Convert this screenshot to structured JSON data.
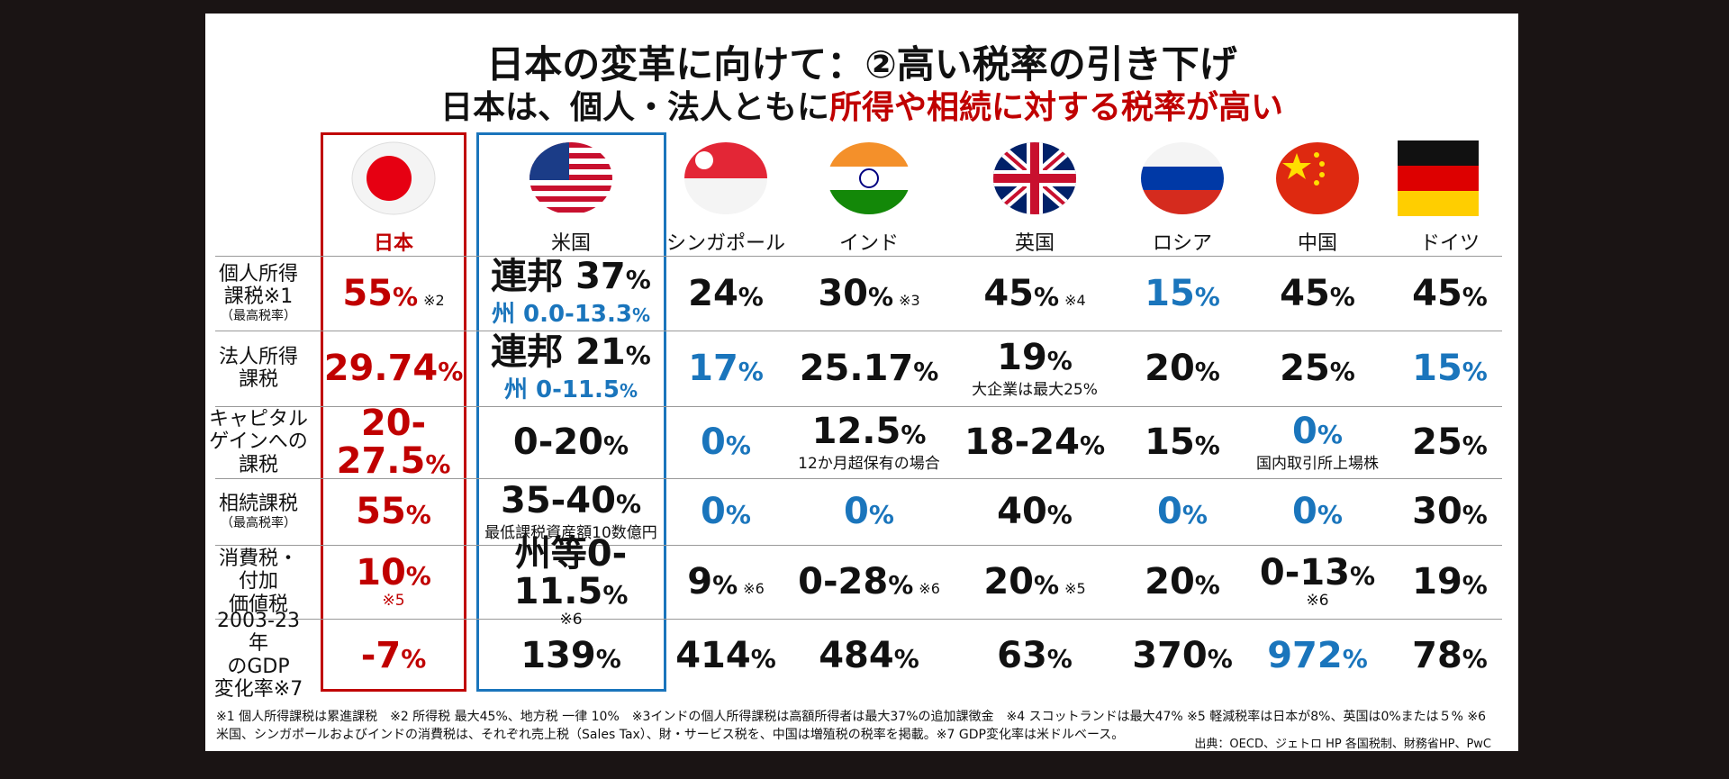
{
  "header": {
    "title": "日本の変革に向けて：②高い税率の引き下げ",
    "subtitle": "日本は、個人・法人ともに",
    "subtitle_highlight": "所得や相続に対する税率が高い"
  },
  "countries": [
    {
      "name": "日本",
      "text_color": "#c00000",
      "box_color": "#c00000"
    },
    {
      "name": "米国",
      "box_color": "#1a75bc"
    },
    {
      "name": "シンガポール"
    },
    {
      "name": "インド"
    },
    {
      "name": "英国"
    },
    {
      "name": "ロシア"
    },
    {
      "name": "中国"
    },
    {
      "name": "ドイツ"
    }
  ],
  "rows": [
    {
      "label": "個人所得\n課税※1",
      "sublabel": "（最高税率）",
      "cells": [
        {
          "text": "55%",
          "note": "※2"
        },
        {
          "text": "連邦 37%",
          "line2": "州 0.0-13.3%",
          "line2_color": "#1a75bc"
        },
        {
          "text": "24%"
        },
        {
          "text": "30%",
          "note": "※3"
        },
        {
          "text": "45%",
          "note": "※4"
        },
        {
          "text": "15%",
          "color": "#1a75bc"
        },
        {
          "text": "45%"
        },
        {
          "text": "45%"
        }
      ]
    },
    {
      "label": "法人所得\n課税",
      "cells": [
        {
          "text": "29.74%"
        },
        {
          "text": "連邦 21%",
          "line2": "州 0-11.5%",
          "line2_color": "#1a75bc"
        },
        {
          "text": "17%",
          "color": "#1a75bc"
        },
        {
          "text": "25.17%"
        },
        {
          "text": "19%",
          "sub": "大企業は最大25%"
        },
        {
          "text": "20%"
        },
        {
          "text": "25%"
        },
        {
          "text": "15%",
          "color": "#1a75bc"
        }
      ]
    },
    {
      "label": "キャピタル\nゲインへの\n課税",
      "cells": [
        {
          "text": "20-\n27.5%"
        },
        {
          "text": "0-20%"
        },
        {
          "text": "0%",
          "color": "#1a75bc"
        },
        {
          "text": "12.5%",
          "sub": "12か月超保有の場合"
        },
        {
          "text": "18-24%"
        },
        {
          "text": "15%"
        },
        {
          "text": "0%",
          "color": "#1a75bc",
          "sub": "国内取引所上場株"
        },
        {
          "text": "25%"
        }
      ]
    },
    {
      "label": "相続課税",
      "sublabel": "（最高税率）",
      "cells": [
        {
          "text": "55%"
        },
        {
          "text": "35-40%",
          "sub": "最低課税資産額10数億円"
        },
        {
          "text": "0%",
          "color": "#1a75bc"
        },
        {
          "text": "0%",
          "color": "#1a75bc"
        },
        {
          "text": "40%"
        },
        {
          "text": "0%",
          "color": "#1a75bc"
        },
        {
          "text": "0%",
          "color": "#1a75bc"
        },
        {
          "text": "30%"
        }
      ]
    },
    {
      "label": "消費税・\n付加\n価値税",
      "cells": [
        {
          "text": "10%",
          "sub": "※5"
        },
        {
          "text": "州等0-11.5%",
          "sub": "※6"
        },
        {
          "text": "9%",
          "note": "※6"
        },
        {
          "text": "0-28%",
          "note": "※6"
        },
        {
          "text": "20%",
          "note": "※5"
        },
        {
          "text": "20%"
        },
        {
          "text": "0-13%",
          "sub": "※6"
        },
        {
          "text": "19%"
        }
      ]
    },
    {
      "label": "2003-23年\nのGDP\n変化率※7",
      "cells": [
        {
          "text": "-7%"
        },
        {
          "text": "139%"
        },
        {
          "text": "414%"
        },
        {
          "text": "484%"
        },
        {
          "text": "63%"
        },
        {
          "text": "370%"
        },
        {
          "text": "972%",
          "color": "#1a75bc"
        },
        {
          "text": "78%"
        }
      ]
    }
  ],
  "footnotes": "※1 個人所得課税は累進課税　※2 所得税 最大45%、地方税 一律 10%　※3インドの個人所得課税は高額所得者は最大37%の追加課徴金　※4 スコットランドは最大47% ※5 軽減税率は日本が8%、英国は0%または５%  ※6 米国、シンガポールおよびインドの消費税は、それぞれ売上税（Sales Tax）、財・サービス税を、中国は増殖税の税率を掲載。※7 GDP変化率は米ドルベース。",
  "source": "出典：OECD、ジェトロ HP 各国税制、財務省HP、PwC"
}
